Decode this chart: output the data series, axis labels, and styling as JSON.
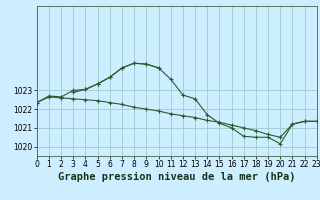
{
  "title": "Graphe pression niveau de la mer (hPa)",
  "bg_color": "#cceeff",
  "grid_color": "#99cccc",
  "line_color": "#2d5a2d",
  "xlim": [
    0,
    23
  ],
  "ylim": [
    1019.5,
    1027.5
  ],
  "yticks": [
    1020,
    1021,
    1022,
    1023
  ],
  "xticks": [
    0,
    1,
    2,
    3,
    4,
    5,
    6,
    7,
    8,
    9,
    10,
    11,
    12,
    13,
    14,
    15,
    16,
    17,
    18,
    19,
    20,
    21,
    22,
    23
  ],
  "series1_x": [
    0,
    1,
    2,
    3,
    4,
    5,
    6,
    7,
    8,
    9,
    10,
    11,
    12,
    13,
    14,
    15,
    16,
    17,
    18,
    19,
    20,
    21,
    22,
    23
  ],
  "series1_y": [
    1022.35,
    1022.7,
    1022.65,
    1023.0,
    1023.05,
    1023.35,
    1023.7,
    1024.2,
    1024.45,
    1024.4,
    1024.2,
    1023.6,
    1022.75,
    1022.55,
    1021.7,
    1021.25,
    1021.0,
    1020.55,
    1020.5,
    1020.5,
    1020.15,
    1021.2,
    1021.35,
    1021.35
  ],
  "series2_x": [
    0,
    1,
    2,
    3,
    4,
    5,
    6,
    7,
    8,
    9,
    10,
    11,
    12,
    13,
    14,
    15,
    16,
    17,
    18,
    19,
    20,
    21,
    22,
    23
  ],
  "series2_y": [
    1022.35,
    1022.65,
    1022.6,
    1022.55,
    1022.5,
    1022.45,
    1022.35,
    1022.25,
    1022.1,
    1022.0,
    1021.9,
    1021.75,
    1021.65,
    1021.55,
    1021.4,
    1021.3,
    1021.15,
    1021.0,
    1020.85,
    1020.65,
    1020.5,
    1021.2,
    1021.35,
    1021.35
  ],
  "series3_x": [
    3,
    4,
    5,
    6,
    7,
    8,
    9,
    10
  ],
  "series3_y": [
    1022.9,
    1023.05,
    1023.35,
    1023.7,
    1024.2,
    1024.45,
    1024.4,
    1024.2
  ],
  "title_fontsize": 7.5,
  "tick_fontsize": 5.5
}
